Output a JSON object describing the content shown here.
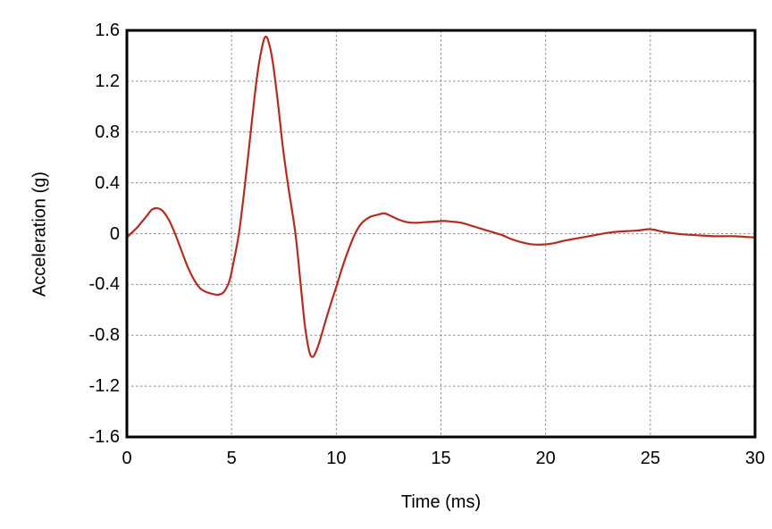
{
  "chart_data": {
    "type": "line",
    "title": "",
    "xlabel": "Time (ms)",
    "ylabel": "Acceleration (g)",
    "xlim": [
      0,
      30
    ],
    "ylim": [
      -1.6,
      1.6
    ],
    "x_ticks": [
      0,
      5,
      10,
      15,
      20,
      25,
      30
    ],
    "x_tick_labels": [
      "0",
      "5",
      "10",
      "15",
      "20",
      "25",
      "30"
    ],
    "y_ticks": [
      1.6,
      1.2,
      0.8,
      0.4,
      0,
      -0.4,
      -0.8,
      -1.2,
      -1.6
    ],
    "y_tick_labels": [
      "1.6",
      "1.2",
      "0.8",
      "0.4",
      "0",
      "-0.4",
      "-0.8",
      "-1.2",
      "-1.6"
    ],
    "grid": "dashed gray lines at interior major ticks, none on plot border",
    "legend": "none",
    "series": [
      {
        "name": "acceleration-trace",
        "color": "#b22d20",
        "points": [
          [
            0.0,
            -0.03
          ],
          [
            0.25,
            0.01
          ],
          [
            0.5,
            0.05
          ],
          [
            0.75,
            0.1
          ],
          [
            1.0,
            0.15
          ],
          [
            1.2,
            0.19
          ],
          [
            1.45,
            0.2
          ],
          [
            1.7,
            0.18
          ],
          [
            2.0,
            0.11
          ],
          [
            2.3,
            0.0
          ],
          [
            2.6,
            -0.13
          ],
          [
            2.9,
            -0.26
          ],
          [
            3.2,
            -0.36
          ],
          [
            3.5,
            -0.43
          ],
          [
            3.8,
            -0.46
          ],
          [
            4.1,
            -0.475
          ],
          [
            4.4,
            -0.48
          ],
          [
            4.65,
            -0.455
          ],
          [
            4.9,
            -0.37
          ],
          [
            5.1,
            -0.22
          ],
          [
            5.35,
            0.0
          ],
          [
            5.6,
            0.33
          ],
          [
            5.85,
            0.7
          ],
          [
            6.1,
            1.08
          ],
          [
            6.3,
            1.33
          ],
          [
            6.5,
            1.5
          ],
          [
            6.62,
            1.55
          ],
          [
            6.75,
            1.52
          ],
          [
            6.95,
            1.37
          ],
          [
            7.2,
            1.05
          ],
          [
            7.45,
            0.68
          ],
          [
            7.7,
            0.38
          ],
          [
            8.05,
            0.0
          ],
          [
            8.3,
            -0.4
          ],
          [
            8.5,
            -0.72
          ],
          [
            8.7,
            -0.92
          ],
          [
            8.85,
            -0.97
          ],
          [
            9.0,
            -0.94
          ],
          [
            9.2,
            -0.85
          ],
          [
            9.5,
            -0.68
          ],
          [
            9.8,
            -0.52
          ],
          [
            10.0,
            -0.42
          ],
          [
            10.3,
            -0.26
          ],
          [
            10.6,
            -0.12
          ],
          [
            10.9,
            0.0
          ],
          [
            11.2,
            0.08
          ],
          [
            11.6,
            0.13
          ],
          [
            12.0,
            0.15
          ],
          [
            12.3,
            0.16
          ],
          [
            12.6,
            0.14
          ],
          [
            13.0,
            0.11
          ],
          [
            13.4,
            0.09
          ],
          [
            13.8,
            0.085
          ],
          [
            14.2,
            0.09
          ],
          [
            14.7,
            0.095
          ],
          [
            15.1,
            0.1
          ],
          [
            15.5,
            0.095
          ],
          [
            16.0,
            0.085
          ],
          [
            16.5,
            0.06
          ],
          [
            17.0,
            0.035
          ],
          [
            17.5,
            0.01
          ],
          [
            17.9,
            -0.01
          ],
          [
            18.4,
            -0.045
          ],
          [
            18.9,
            -0.07
          ],
          [
            19.4,
            -0.085
          ],
          [
            19.9,
            -0.085
          ],
          [
            20.4,
            -0.075
          ],
          [
            20.9,
            -0.055
          ],
          [
            21.4,
            -0.04
          ],
          [
            21.9,
            -0.025
          ],
          [
            22.4,
            -0.01
          ],
          [
            22.9,
            0.005
          ],
          [
            23.4,
            0.015
          ],
          [
            23.9,
            0.02
          ],
          [
            24.4,
            0.025
          ],
          [
            24.9,
            0.035
          ],
          [
            25.2,
            0.03
          ],
          [
            25.6,
            0.015
          ],
          [
            26.0,
            0.005
          ],
          [
            26.5,
            -0.005
          ],
          [
            27.0,
            -0.01
          ],
          [
            27.5,
            -0.015
          ],
          [
            28.0,
            -0.02
          ],
          [
            28.5,
            -0.02
          ],
          [
            29.0,
            -0.02
          ],
          [
            29.5,
            -0.025
          ],
          [
            30.0,
            -0.03
          ]
        ]
      }
    ],
    "style": {
      "line_color": "#b22d20",
      "line_width": 2.2,
      "grid_color": "#8c8c8c",
      "grid_dash": "2.5 2.5",
      "border_color": "#000000",
      "border_width": 3,
      "background": "#ffffff"
    }
  }
}
